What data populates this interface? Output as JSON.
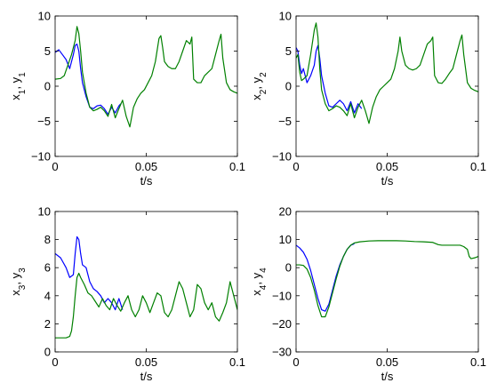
{
  "chart_data": [
    {
      "type": "line",
      "xlabel": "t/s",
      "ylabel": "x_1, y_1",
      "ylabel_parts": [
        {
          "t": "x",
          "s": false
        },
        {
          "t": "1",
          "s": true
        },
        {
          "t": ", y",
          "s": false
        },
        {
          "t": "1",
          "s": true
        }
      ],
      "xlim": [
        0,
        0.1
      ],
      "ylim": [
        -10,
        10
      ],
      "xticks": [
        0,
        0.05,
        0.1
      ],
      "xtick_labels": [
        "0",
        "0.05",
        "0.1"
      ],
      "yticks": [
        -10,
        -5,
        0,
        5,
        10
      ],
      "ytick_labels": [
        "−10",
        "−5",
        "0",
        "5",
        "10"
      ],
      "grid": false,
      "series": [
        {
          "color": "#0000ff",
          "x": [
            0,
            0.002,
            0.004,
            0.006,
            0.008,
            0.01,
            0.011,
            0.012,
            0.013,
            0.014,
            0.015,
            0.017,
            0.019,
            0.021,
            0.023,
            0.025,
            0.027,
            0.029,
            0.031,
            0.033,
            0.035,
            0.036
          ],
          "y": [
            4.8,
            5.2,
            4.5,
            3.8,
            2.5,
            4.5,
            5.8,
            6.0,
            5.0,
            2.5,
            0.5,
            -1.5,
            -3.0,
            -3.2,
            -2.8,
            -2.7,
            -3.2,
            -4.0,
            -3.0,
            -3.8,
            -2.8,
            -2.5
          ]
        },
        {
          "color": "#008000",
          "x": [
            0,
            0.003,
            0.005,
            0.007,
            0.009,
            0.011,
            0.012,
            0.013,
            0.014,
            0.015,
            0.017,
            0.019,
            0.021,
            0.023,
            0.025,
            0.027,
            0.029,
            0.031,
            0.033,
            0.035,
            0.037,
            0.039,
            0.041,
            0.043,
            0.045,
            0.047,
            0.049,
            0.051,
            0.053,
            0.055,
            0.057,
            0.058,
            0.059,
            0.06,
            0.062,
            0.064,
            0.066,
            0.068,
            0.07,
            0.072,
            0.074,
            0.075,
            0.076,
            0.078,
            0.08,
            0.082,
            0.084,
            0.086,
            0.088,
            0.09,
            0.091,
            0.092,
            0.094,
            0.096,
            0.098,
            0.1
          ],
          "y": [
            1.0,
            1.1,
            1.5,
            3.0,
            4.5,
            6.5,
            8.5,
            7.5,
            5.0,
            2.0,
            -1.0,
            -3.0,
            -3.5,
            -3.3,
            -3.0,
            -3.5,
            -4.3,
            -2.6,
            -4.5,
            -3.2,
            -2.0,
            -4.3,
            -5.8,
            -3.0,
            -1.8,
            -1.0,
            -0.5,
            0.5,
            1.5,
            3.5,
            6.8,
            7.2,
            5.5,
            3.5,
            2.8,
            2.5,
            2.5,
            3.5,
            5.0,
            6.5,
            6.0,
            7.0,
            1.0,
            0.5,
            0.5,
            1.5,
            2.0,
            2.5,
            4.5,
            6.5,
            7.4,
            4.0,
            0.5,
            -0.5,
            -0.8,
            -1.0
          ]
        }
      ]
    },
    {
      "type": "line",
      "xlabel": "t/s",
      "ylabel": "x_2, y_2",
      "ylabel_parts": [
        {
          "t": "x",
          "s": false
        },
        {
          "t": "2",
          "s": true
        },
        {
          "t": ", y",
          "s": false
        },
        {
          "t": "2",
          "s": true
        }
      ],
      "xlim": [
        0,
        0.1
      ],
      "ylim": [
        -10,
        10
      ],
      "xticks": [
        0,
        0.05,
        0.1
      ],
      "xtick_labels": [
        "0",
        "0.05",
        "0.1"
      ],
      "yticks": [
        -10,
        -5,
        0,
        5,
        10
      ],
      "ytick_labels": [
        "−10",
        "−5",
        "0",
        "5",
        "10"
      ],
      "grid": false,
      "series": [
        {
          "color": "#0000ff",
          "x": [
            0,
            0.001,
            0.002,
            0.003,
            0.004,
            0.006,
            0.008,
            0.01,
            0.011,
            0.012,
            0.013,
            0.014,
            0.016,
            0.018,
            0.02,
            0.022,
            0.024,
            0.026,
            0.028,
            0.03,
            0.032,
            0.034,
            0.036
          ],
          "y": [
            5.5,
            5.0,
            3.0,
            1.8,
            2.5,
            0.5,
            1.5,
            3.0,
            5.0,
            5.8,
            4.0,
            1.5,
            -1.0,
            -2.8,
            -3.0,
            -2.5,
            -2.0,
            -2.5,
            -3.5,
            -2.2,
            -3.8,
            -2.5,
            -3.2
          ]
        },
        {
          "color": "#008000",
          "x": [
            0,
            0.001,
            0.002,
            0.003,
            0.004,
            0.006,
            0.008,
            0.01,
            0.011,
            0.012,
            0.013,
            0.014,
            0.016,
            0.018,
            0.02,
            0.022,
            0.024,
            0.026,
            0.028,
            0.03,
            0.032,
            0.034,
            0.036,
            0.038,
            0.04,
            0.042,
            0.044,
            0.046,
            0.048,
            0.05,
            0.052,
            0.054,
            0.056,
            0.057,
            0.058,
            0.06,
            0.062,
            0.064,
            0.066,
            0.068,
            0.07,
            0.072,
            0.074,
            0.075,
            0.076,
            0.078,
            0.08,
            0.082,
            0.084,
            0.086,
            0.088,
            0.09,
            0.091,
            0.092,
            0.094,
            0.096,
            0.098,
            0.1
          ],
          "y": [
            4.0,
            4.5,
            2.0,
            0.8,
            1.0,
            1.5,
            4.5,
            8.0,
            9.0,
            7.0,
            2.5,
            -0.5,
            -2.5,
            -3.5,
            -3.2,
            -2.8,
            -3.0,
            -3.5,
            -4.2,
            -2.5,
            -4.5,
            -3.0,
            -2.0,
            -3.5,
            -5.3,
            -3.0,
            -1.5,
            -0.5,
            0.0,
            0.5,
            1.0,
            2.5,
            5.0,
            7.0,
            5.0,
            3.0,
            2.5,
            2.3,
            2.5,
            3.0,
            4.5,
            6.0,
            6.5,
            7.0,
            1.5,
            0.5,
            0.4,
            1.0,
            1.8,
            2.5,
            4.5,
            6.5,
            7.3,
            4.5,
            0.5,
            -0.3,
            -0.6,
            -0.8
          ]
        }
      ]
    },
    {
      "type": "line",
      "xlabel": "t/s",
      "ylabel": "x_3, y_3",
      "ylabel_parts": [
        {
          "t": "x",
          "s": false
        },
        {
          "t": "3",
          "s": true
        },
        {
          "t": ", y",
          "s": false
        },
        {
          "t": "3",
          "s": true
        }
      ],
      "xlim": [
        0,
        0.1
      ],
      "ylim": [
        0,
        10
      ],
      "xticks": [
        0,
        0.05,
        0.1
      ],
      "xtick_labels": [
        "0",
        "0.05",
        "0.1"
      ],
      "yticks": [
        0,
        2,
        4,
        6,
        8,
        10
      ],
      "ytick_labels": [
        "0",
        "2",
        "4",
        "6",
        "8",
        "10"
      ],
      "grid": false,
      "series": [
        {
          "color": "#0000ff",
          "x": [
            0,
            0.003,
            0.006,
            0.008,
            0.01,
            0.011,
            0.012,
            0.013,
            0.014,
            0.015,
            0.017,
            0.019,
            0.021,
            0.023,
            0.025,
            0.027,
            0.029,
            0.031,
            0.033,
            0.035,
            0.037
          ],
          "y": [
            7.0,
            6.7,
            6.0,
            5.3,
            5.5,
            7.0,
            8.2,
            8.0,
            7.0,
            6.2,
            6.0,
            5.0,
            4.5,
            4.3,
            4.0,
            3.5,
            3.8,
            3.5,
            3.0,
            3.8,
            3.0
          ]
        },
        {
          "color": "#008000",
          "x": [
            0,
            0.002,
            0.004,
            0.006,
            0.008,
            0.009,
            0.01,
            0.011,
            0.012,
            0.013,
            0.014,
            0.016,
            0.018,
            0.02,
            0.022,
            0.024,
            0.026,
            0.028,
            0.03,
            0.032,
            0.034,
            0.036,
            0.038,
            0.04,
            0.042,
            0.044,
            0.046,
            0.048,
            0.05,
            0.052,
            0.054,
            0.056,
            0.058,
            0.06,
            0.062,
            0.064,
            0.066,
            0.068,
            0.07,
            0.072,
            0.074,
            0.076,
            0.078,
            0.08,
            0.082,
            0.084,
            0.086,
            0.088,
            0.09,
            0.092,
            0.094,
            0.096,
            0.098,
            0.1
          ],
          "y": [
            1.0,
            1.0,
            1.0,
            1.0,
            1.1,
            1.5,
            2.5,
            4.0,
            5.3,
            5.6,
            5.3,
            4.8,
            4.2,
            4.0,
            3.6,
            3.2,
            3.8,
            3.3,
            3.0,
            3.8,
            3.3,
            2.9,
            3.5,
            4.0,
            3.0,
            2.5,
            3.0,
            4.0,
            3.5,
            2.8,
            3.5,
            4.2,
            4.0,
            2.8,
            2.5,
            3.0,
            4.0,
            5.0,
            4.5,
            3.5,
            2.5,
            3.0,
            4.8,
            4.5,
            3.5,
            3.0,
            3.5,
            2.5,
            2.2,
            2.8,
            3.5,
            5.0,
            4.0,
            3.0
          ]
        }
      ]
    },
    {
      "type": "line",
      "xlabel": "t/s",
      "ylabel": "x_4, y_4",
      "ylabel_parts": [
        {
          "t": "x",
          "s": false
        },
        {
          "t": "4",
          "s": true
        },
        {
          "t": ", y",
          "s": false
        },
        {
          "t": "4",
          "s": true
        }
      ],
      "xlim": [
        0,
        0.1
      ],
      "ylim": [
        -30,
        20
      ],
      "xticks": [
        0,
        0.05,
        0.1
      ],
      "xtick_labels": [
        "0",
        "0.05",
        "0.1"
      ],
      "yticks": [
        -30,
        -20,
        -10,
        0,
        10,
        20
      ],
      "ytick_labels": [
        "−30",
        "−20",
        "−10",
        "0",
        "10",
        "20"
      ],
      "grid": false,
      "series": [
        {
          "color": "#0000ff",
          "x": [
            0,
            0.002,
            0.004,
            0.006,
            0.008,
            0.01,
            0.012,
            0.014,
            0.016,
            0.018,
            0.02,
            0.022,
            0.024,
            0.026,
            0.028,
            0.03,
            0.032
          ],
          "y": [
            8.0,
            7.0,
            5.5,
            3.0,
            -1.0,
            -6.0,
            -11.0,
            -15.0,
            -15.5,
            -13.0,
            -8.0,
            -3.0,
            1.0,
            4.0,
            6.5,
            8.0,
            8.5
          ]
        },
        {
          "color": "#008000",
          "x": [
            0,
            0.002,
            0.004,
            0.006,
            0.008,
            0.01,
            0.012,
            0.014,
            0.016,
            0.018,
            0.02,
            0.022,
            0.024,
            0.026,
            0.028,
            0.03,
            0.032,
            0.035,
            0.04,
            0.045,
            0.05,
            0.055,
            0.06,
            0.065,
            0.07,
            0.075,
            0.078,
            0.08,
            0.085,
            0.09,
            0.092,
            0.094,
            0.095,
            0.096,
            0.098,
            0.1
          ],
          "y": [
            1.0,
            1.0,
            0.8,
            -0.5,
            -3.5,
            -8.0,
            -13.5,
            -17.5,
            -17.5,
            -14.0,
            -9.0,
            -4.0,
            0.5,
            4.0,
            6.5,
            8.0,
            8.8,
            9.2,
            9.5,
            9.6,
            9.6,
            9.6,
            9.5,
            9.3,
            9.2,
            9.0,
            8.2,
            8.0,
            8.0,
            8.0,
            7.5,
            6.5,
            4.0,
            3.2,
            3.5,
            4.0
          ]
        }
      ]
    }
  ]
}
